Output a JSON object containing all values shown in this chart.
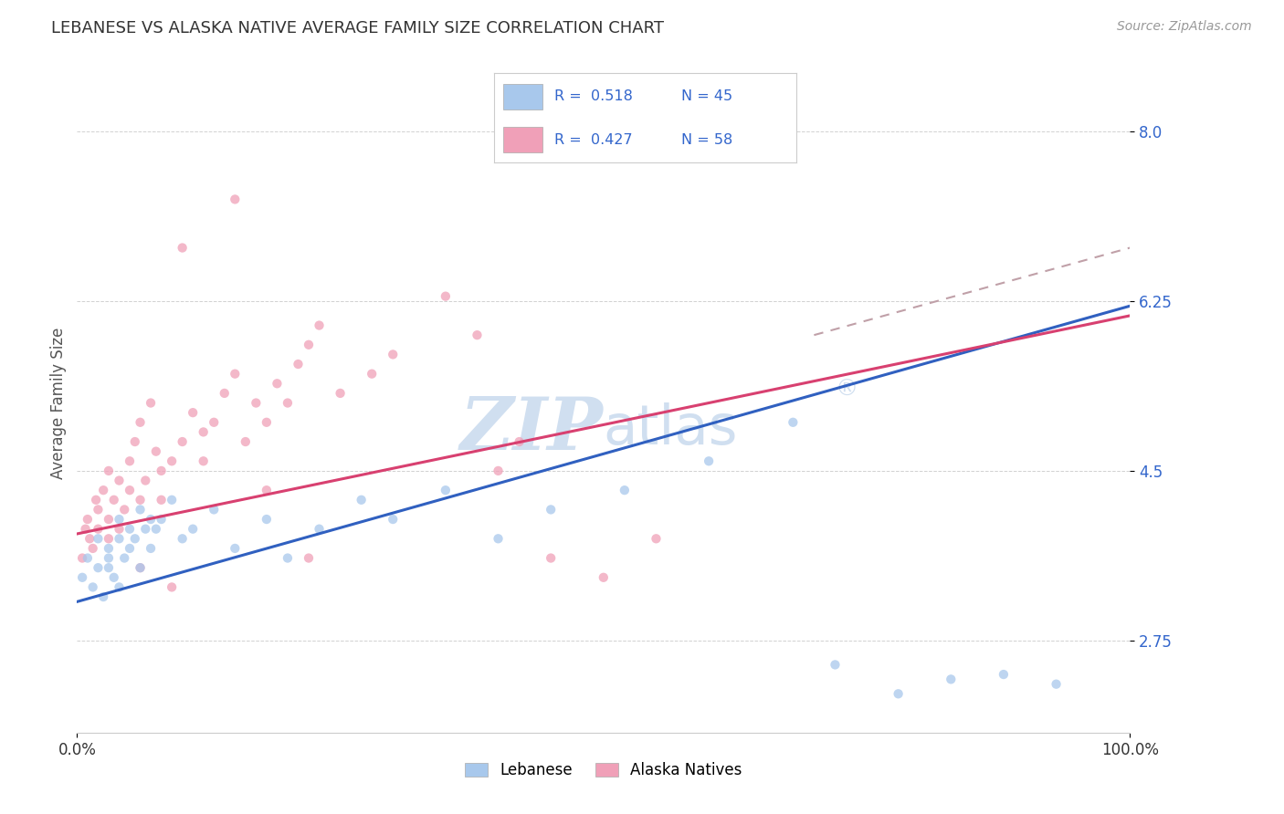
{
  "title": "LEBANESE VS ALASKA NATIVE AVERAGE FAMILY SIZE CORRELATION CHART",
  "source": "Source: ZipAtlas.com",
  "ylabel": "Average Family Size",
  "xlim": [
    0.0,
    1.0
  ],
  "ylim": [
    1.8,
    8.6
  ],
  "yticks": [
    2.75,
    4.5,
    6.25,
    8.0
  ],
  "xtick_labels": [
    "0.0%",
    "100.0%"
  ],
  "legend_labels": [
    "Lebanese",
    "Alaska Natives"
  ],
  "r_lebanese": 0.518,
  "n_lebanese": 45,
  "r_alaska": 0.427,
  "n_alaska": 58,
  "color_lebanese": "#A8C8EC",
  "color_alaska": "#F0A0B8",
  "line_color_lebanese": "#3060C0",
  "line_color_alaska": "#D84070",
  "line_color_dashed": "#C0A0A8",
  "scatter_alpha": 0.75,
  "scatter_size": 55,
  "watermark_color": "#D0DFF0",
  "lebanese_x": [
    0.005,
    0.01,
    0.015,
    0.02,
    0.02,
    0.025,
    0.03,
    0.03,
    0.03,
    0.035,
    0.04,
    0.04,
    0.04,
    0.045,
    0.05,
    0.05,
    0.055,
    0.06,
    0.06,
    0.065,
    0.07,
    0.07,
    0.075,
    0.08,
    0.09,
    0.1,
    0.11,
    0.13,
    0.15,
    0.18,
    0.2,
    0.23,
    0.27,
    0.3,
    0.35,
    0.4,
    0.45,
    0.52,
    0.6,
    0.68,
    0.72,
    0.78,
    0.83,
    0.88,
    0.93
  ],
  "lebanese_y": [
    3.4,
    3.6,
    3.3,
    3.5,
    3.8,
    3.2,
    3.7,
    3.5,
    3.6,
    3.4,
    3.8,
    4.0,
    3.3,
    3.6,
    3.9,
    3.7,
    3.8,
    4.1,
    3.5,
    3.9,
    4.0,
    3.7,
    3.9,
    4.0,
    4.2,
    3.8,
    3.9,
    4.1,
    3.7,
    4.0,
    3.6,
    3.9,
    4.2,
    4.0,
    4.3,
    3.8,
    4.1,
    4.3,
    4.6,
    5.0,
    2.5,
    2.2,
    2.35,
    2.4,
    2.3
  ],
  "alaska_x": [
    0.005,
    0.008,
    0.01,
    0.012,
    0.015,
    0.018,
    0.02,
    0.02,
    0.025,
    0.03,
    0.03,
    0.03,
    0.035,
    0.04,
    0.04,
    0.045,
    0.05,
    0.05,
    0.055,
    0.06,
    0.06,
    0.065,
    0.07,
    0.075,
    0.08,
    0.09,
    0.1,
    0.11,
    0.12,
    0.13,
    0.14,
    0.15,
    0.16,
    0.17,
    0.18,
    0.19,
    0.2,
    0.21,
    0.22,
    0.23,
    0.25,
    0.28,
    0.3,
    0.35,
    0.38,
    0.4,
    0.42,
    0.45,
    0.5,
    0.55,
    0.1,
    0.15,
    0.08,
    0.12,
    0.18,
    0.06,
    0.09,
    0.22
  ],
  "alaska_y": [
    3.6,
    3.9,
    4.0,
    3.8,
    3.7,
    4.2,
    3.9,
    4.1,
    4.3,
    3.8,
    4.5,
    4.0,
    4.2,
    4.4,
    3.9,
    4.1,
    4.3,
    4.6,
    4.8,
    5.0,
    4.2,
    4.4,
    5.2,
    4.7,
    4.5,
    4.6,
    4.8,
    5.1,
    4.9,
    5.0,
    5.3,
    5.5,
    4.8,
    5.2,
    5.0,
    5.4,
    5.2,
    5.6,
    5.8,
    6.0,
    5.3,
    5.5,
    5.7,
    6.3,
    5.9,
    4.5,
    4.8,
    3.6,
    3.4,
    3.8,
    6.8,
    7.3,
    4.2,
    4.6,
    4.3,
    3.5,
    3.3,
    3.6
  ],
  "lebanese_line_x0": 0.0,
  "lebanese_line_y0": 3.15,
  "lebanese_line_x1": 1.0,
  "lebanese_line_y1": 6.2,
  "alaska_line_x0": 0.0,
  "alaska_line_y0": 3.85,
  "alaska_line_x1": 1.0,
  "alaska_line_y1": 6.1,
  "dashed_line_x0": 0.7,
  "dashed_line_y0": 5.9,
  "dashed_line_x1": 1.0,
  "dashed_line_y1": 6.8
}
